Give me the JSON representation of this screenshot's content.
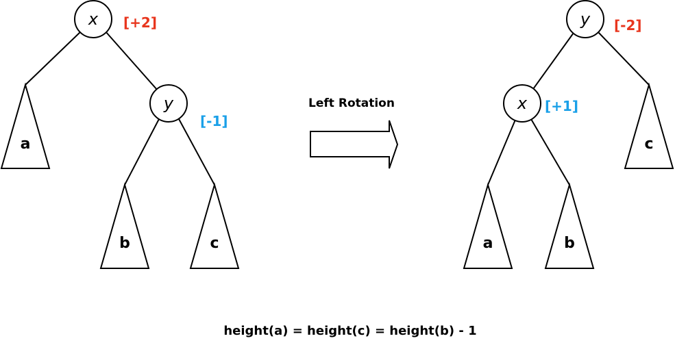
{
  "colors": {
    "stroke": "#000000",
    "positive_balance_red": "#e8361e",
    "blue_balance": "#1aa0e8",
    "fill": "#ffffff"
  },
  "left_tree": {
    "root_label": "x",
    "root_balance": "[+2]",
    "child_label": "y",
    "child_balance": "[-1]",
    "leaf_a": "a",
    "leaf_b": "b",
    "leaf_c": "c"
  },
  "arrow": {
    "caption": "Left Rotation",
    "icon": "right-arrow-icon"
  },
  "right_tree": {
    "root_label": "y",
    "root_balance": "[-2]",
    "child_label": "x",
    "child_balance": "[+1]",
    "leaf_a": "a",
    "leaf_b": "b",
    "leaf_c": "c"
  },
  "formula": "height(a) = height(c) = height(b) - 1"
}
